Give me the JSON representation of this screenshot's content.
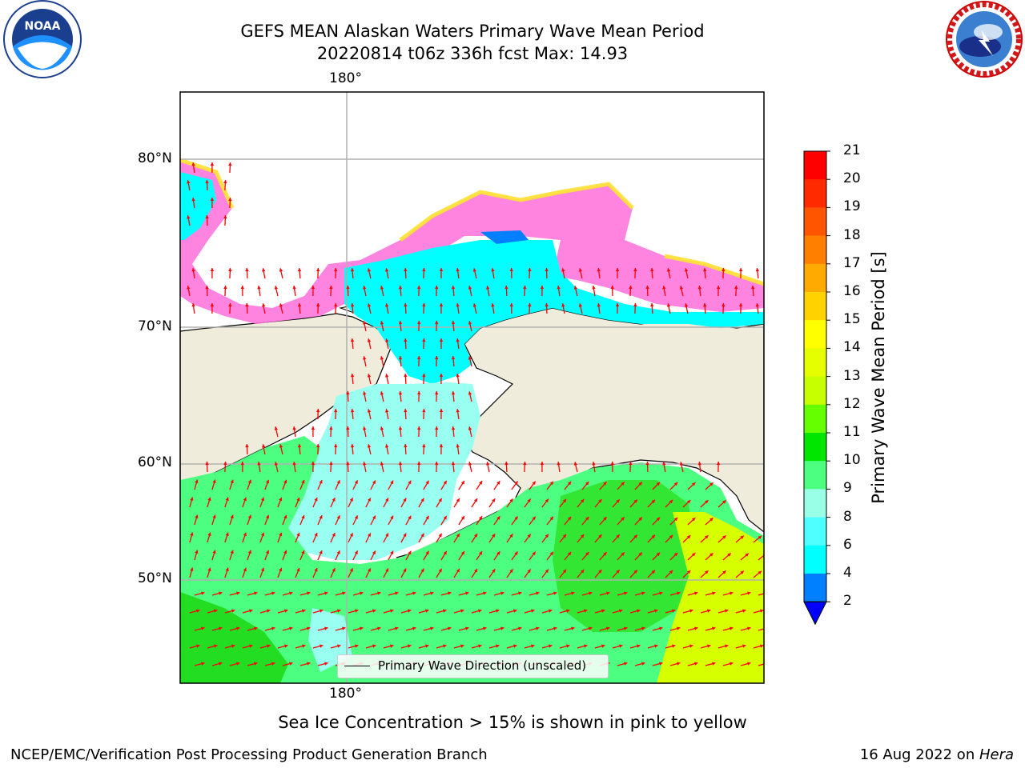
{
  "title_line1": "GEFS MEAN Alaskan Waters Primary Wave Mean Period",
  "title_line2": "20220814 t06z 336h fcst   Max: 14.93",
  "lon_label_top": "180°",
  "lon_label_bottom": "180°",
  "lat_labels": [
    "80°N",
    "70°N",
    "60°N",
    "50°N"
  ],
  "colorbar": {
    "label": "Primary Wave Mean Period [s]",
    "ticks": [
      "21",
      "20",
      "19",
      "18",
      "17",
      "16",
      "15",
      "14",
      "13",
      "12",
      "11",
      "10",
      "9",
      "8",
      "6",
      "4",
      "2"
    ],
    "colors": [
      "#ff0000",
      "#ff2a00",
      "#ff5500",
      "#ff7f00",
      "#ffaa00",
      "#ffd200",
      "#ffff00",
      "#e6ff00",
      "#c8ff00",
      "#66ff00",
      "#00e600",
      "#4dff80",
      "#99ffe6",
      "#4dffff",
      "#00ffff",
      "#0080ff"
    ],
    "extend_color": "#0000ff"
  },
  "legend_label": "Primary Wave Direction (unscaled)",
  "caption": "Sea Ice Concentration > 15% is shown in pink to yellow",
  "footer_left": "NCEP/EMC/Verification Post Processing Product Generation Branch",
  "footer_right_prefix": "16 Aug 2022 on ",
  "footer_right_host": "Hera",
  "logos": {
    "left": "NOAA",
    "right": "NATIONAL WEATHER SERVICE"
  },
  "map_colors": {
    "land": "#efecdc",
    "arrow": "#ff0000",
    "ice_pink": "#ff66dd",
    "ice_yellow": "#ffee44",
    "grid": "#b0b0b0"
  }
}
